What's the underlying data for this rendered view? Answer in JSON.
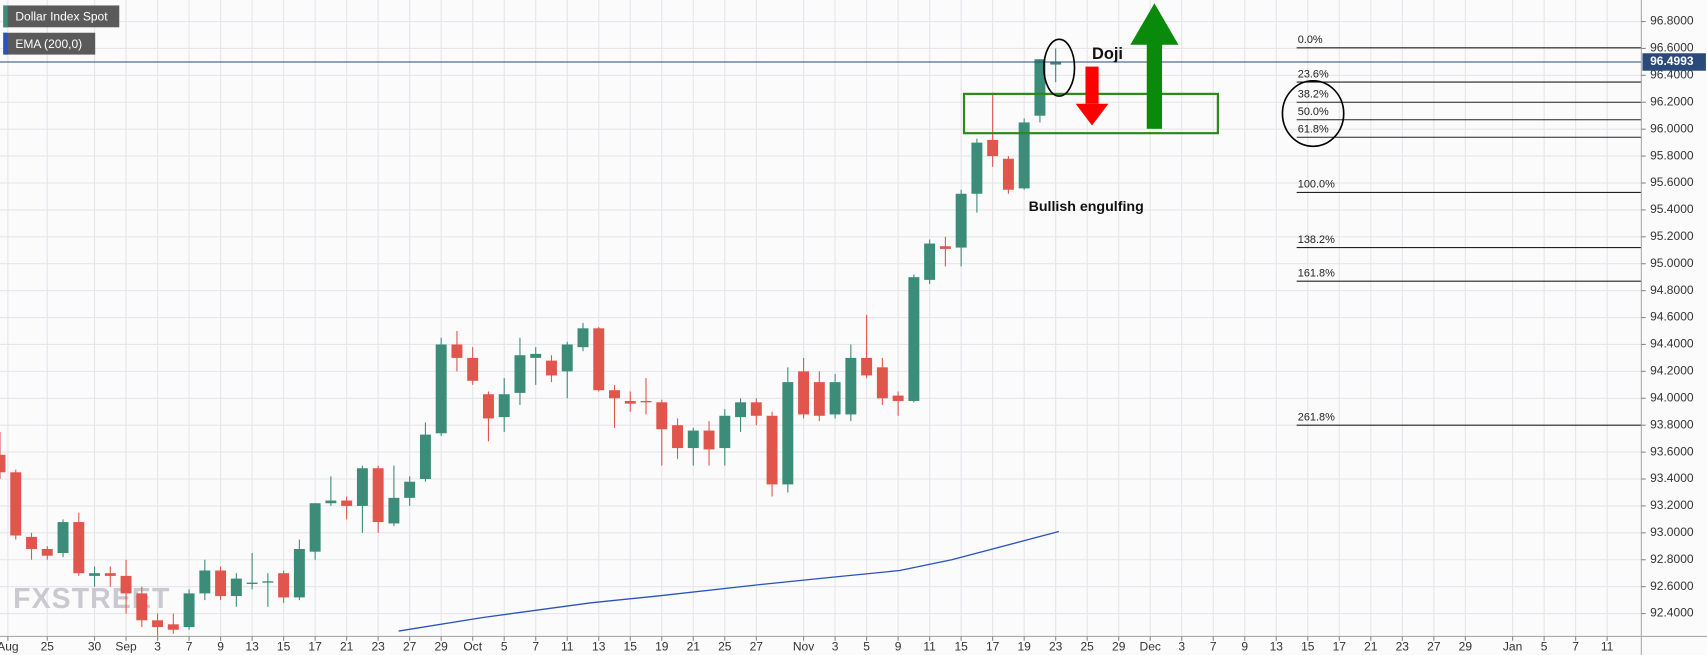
{
  "chart_data": {
    "type": "candlestick",
    "series": [
      {
        "name": "Dollar Index Spot",
        "up_color": "#3b8c78",
        "down_color": "#e0554c",
        "x": [
          0,
          1,
          2,
          3,
          4,
          5,
          6,
          7,
          8,
          9,
          10,
          11,
          12,
          13,
          14,
          15,
          16,
          17,
          18,
          19,
          20,
          21,
          22,
          23,
          24,
          25,
          26,
          27,
          28,
          29,
          30,
          31,
          32,
          33,
          34,
          35,
          36,
          37,
          38,
          39,
          40,
          41,
          42,
          43,
          44,
          45,
          46,
          47,
          48,
          49,
          50,
          51,
          52,
          53,
          54,
          55,
          56,
          57,
          58,
          59,
          60,
          61,
          62,
          63,
          64,
          65,
          66,
          67
        ],
        "open": [
          93.58,
          93.45,
          92.97,
          92.88,
          92.85,
          93.08,
          92.68,
          92.7,
          92.68,
          92.55,
          92.35,
          92.32,
          92.3,
          92.55,
          92.72,
          92.53,
          92.62,
          92.63,
          92.7,
          92.52,
          92.86,
          93.22,
          93.24,
          93.2,
          93.48,
          93.07,
          93.26,
          93.4,
          93.74,
          94.4,
          94.3,
          94.03,
          93.86,
          94.04,
          94.3,
          94.28,
          94.2,
          94.38,
          94.52,
          94.06,
          93.98,
          93.98,
          93.97,
          93.8,
          93.63,
          93.76,
          93.63,
          93.86,
          93.97,
          93.87,
          93.36,
          94.2,
          94.12,
          93.88,
          93.88,
          94.3,
          94.23,
          94.02,
          93.98,
          94.88,
          95.13,
          95.12,
          95.52,
          95.92,
          95.78,
          95.56,
          96.1,
          96.48
        ],
        "high": [
          93.75,
          93.47,
          93.0,
          92.9,
          93.1,
          93.15,
          92.75,
          92.75,
          92.8,
          92.6,
          92.4,
          92.4,
          92.58,
          92.8,
          92.75,
          92.7,
          92.85,
          92.7,
          92.72,
          92.95,
          93.22,
          93.42,
          93.27,
          93.5,
          93.5,
          93.5,
          93.42,
          93.82,
          94.45,
          94.5,
          94.38,
          94.05,
          94.15,
          94.45,
          94.38,
          94.32,
          94.42,
          94.56,
          94.53,
          94.1,
          94.05,
          94.15,
          93.99,
          93.85,
          93.78,
          93.83,
          93.92,
          94.0,
          94.0,
          93.9,
          94.23,
          94.3,
          94.2,
          94.18,
          94.4,
          94.62,
          94.3,
          94.05,
          94.92,
          95.18,
          95.2,
          95.55,
          95.93,
          96.26,
          95.8,
          96.08,
          96.52,
          96.6
        ],
        "low": [
          93.4,
          92.95,
          92.8,
          92.8,
          92.82,
          92.68,
          92.6,
          92.6,
          92.4,
          92.3,
          92.2,
          92.25,
          92.28,
          92.5,
          92.5,
          92.45,
          92.58,
          92.45,
          92.48,
          92.5,
          92.8,
          93.2,
          93.1,
          93.0,
          93.0,
          93.05,
          93.2,
          93.38,
          93.72,
          94.2,
          94.1,
          93.68,
          93.75,
          93.95,
          94.1,
          94.12,
          94.0,
          94.35,
          94.05,
          93.78,
          93.9,
          93.88,
          93.5,
          93.55,
          93.5,
          93.5,
          93.5,
          93.75,
          93.8,
          93.27,
          93.3,
          93.85,
          93.83,
          93.85,
          93.83,
          94.15,
          93.95,
          93.87,
          93.97,
          94.85,
          94.98,
          94.98,
          95.38,
          95.72,
          95.52,
          95.55,
          96.05,
          96.35
        ],
        "close": [
          93.45,
          92.98,
          92.88,
          92.83,
          93.08,
          92.7,
          92.7,
          92.68,
          92.55,
          92.35,
          92.3,
          92.28,
          92.55,
          92.72,
          92.53,
          92.66,
          92.63,
          92.64,
          92.52,
          92.88,
          93.22,
          93.24,
          93.2,
          93.48,
          93.08,
          93.26,
          93.38,
          93.73,
          94.4,
          94.3,
          94.13,
          93.85,
          94.03,
          94.32,
          94.33,
          94.17,
          94.4,
          94.52,
          94.06,
          94.0,
          93.96,
          93.97,
          93.77,
          93.63,
          93.76,
          93.62,
          93.87,
          93.97,
          93.87,
          93.36,
          94.12,
          93.88,
          93.87,
          94.12,
          94.3,
          94.17,
          94.0,
          93.98,
          94.9,
          95.15,
          95.11,
          95.52,
          95.9,
          95.8,
          95.55,
          96.05,
          96.52,
          96.5
        ]
      }
    ],
    "ema": {
      "name": "EMA (200,0)",
      "color": "#2a52be",
      "x": [
        25.3,
        30.6,
        37.5,
        41.7,
        48.6,
        52.8,
        57.1,
        60.4,
        67.2
      ],
      "values": [
        92.27,
        92.37,
        92.48,
        92.53,
        92.62,
        92.67,
        92.72,
        92.8,
        93.01
      ]
    },
    "last_price": 96.4993,
    "last_price_color": "#2a4a7a",
    "fib_levels": [
      {
        "label": "0.0%",
        "value": 96.605
      },
      {
        "label": "23.6%",
        "value": 96.35
      },
      {
        "label": "38.2%",
        "value": 96.2
      },
      {
        "label": "50.0%",
        "value": 96.07
      },
      {
        "label": "61.8%",
        "value": 95.94
      },
      {
        "label": "100.0%",
        "value": 95.53
      },
      {
        "label": "138.2%",
        "value": 95.12
      },
      {
        "label": "161.8%",
        "value": 94.87
      },
      {
        "label": "261.8%",
        "value": 93.8
      }
    ],
    "annotations": [
      "Doji",
      "Bullish engulfing"
    ],
    "watermark": "FXSTREET",
    "ylim": [
      92.23,
      96.96
    ],
    "yticks": [
      {
        "value": 92.4,
        "label": "92.4000"
      },
      {
        "value": 92.6,
        "label": "92.6000"
      },
      {
        "value": 92.8,
        "label": "92.8000"
      },
      {
        "value": 93.0,
        "label": "93.0000"
      },
      {
        "value": 93.2,
        "label": "93.2000"
      },
      {
        "value": 93.4,
        "label": "93.4000"
      },
      {
        "value": 93.6,
        "label": "93.6000"
      },
      {
        "value": 93.8,
        "label": "93.8000"
      },
      {
        "value": 94.0,
        "label": "94.0000"
      },
      {
        "value": 94.2,
        "label": "94.2000"
      },
      {
        "value": 94.4,
        "label": "94.4000"
      },
      {
        "value": 94.6,
        "label": "94.6000"
      },
      {
        "value": 94.8,
        "label": "94.8000"
      },
      {
        "value": 95.0,
        "label": "95.0000"
      },
      {
        "value": 95.2,
        "label": "95.2000"
      },
      {
        "value": 95.4,
        "label": "95.4000"
      },
      {
        "value": 95.6,
        "label": "95.6000"
      },
      {
        "value": 95.8,
        "label": "95.8000"
      },
      {
        "value": 96.0,
        "label": "96.0000"
      },
      {
        "value": 96.2,
        "label": "96.2000"
      },
      {
        "value": 96.4,
        "label": "96.4000"
      },
      {
        "value": 96.6,
        "label": "96.6000"
      },
      {
        "value": 96.8,
        "label": "96.8000"
      }
    ],
    "xlim": [
      0,
      104.17
    ],
    "xticks": [
      {
        "value": 0.5,
        "label": "Aug"
      },
      {
        "value": 3,
        "label": "25"
      },
      {
        "value": 6,
        "label": "30"
      },
      {
        "value": 8,
        "label": "Sep"
      },
      {
        "value": 10,
        "label": "3"
      },
      {
        "value": 12,
        "label": "7"
      },
      {
        "value": 14,
        "label": "9"
      },
      {
        "value": 16,
        "label": "13"
      },
      {
        "value": 18,
        "label": "15"
      },
      {
        "value": 20,
        "label": "17"
      },
      {
        "value": 22,
        "label": "21"
      },
      {
        "value": 24,
        "label": "23"
      },
      {
        "value": 26,
        "label": "27"
      },
      {
        "value": 28,
        "label": "29"
      },
      {
        "value": 30,
        "label": "Oct"
      },
      {
        "value": 32,
        "label": "5"
      },
      {
        "value": 34,
        "label": "7"
      },
      {
        "value": 36,
        "label": "11"
      },
      {
        "value": 38,
        "label": "13"
      },
      {
        "value": 40,
        "label": "15"
      },
      {
        "value": 42,
        "label": "19"
      },
      {
        "value": 44,
        "label": "21"
      },
      {
        "value": 46,
        "label": "25"
      },
      {
        "value": 48,
        "label": "27"
      },
      {
        "value": 51,
        "label": "Nov"
      },
      {
        "value": 53,
        "label": "3"
      },
      {
        "value": 55,
        "label": "5"
      },
      {
        "value": 57,
        "label": "9"
      },
      {
        "value": 59,
        "label": "11"
      },
      {
        "value": 61,
        "label": "15"
      },
      {
        "value": 63,
        "label": "17"
      },
      {
        "value": 65,
        "label": "19"
      },
      {
        "value": 67,
        "label": "23"
      },
      {
        "value": 69,
        "label": "25"
      },
      {
        "value": 71,
        "label": "29"
      },
      {
        "value": 73,
        "label": "Dec"
      },
      {
        "value": 75,
        "label": "3"
      },
      {
        "value": 77,
        "label": "7"
      },
      {
        "value": 79,
        "label": "9"
      },
      {
        "value": 81,
        "label": "13"
      },
      {
        "value": 83,
        "label": "15"
      },
      {
        "value": 85,
        "label": "17"
      },
      {
        "value": 87,
        "label": "21"
      },
      {
        "value": 89,
        "label": "23"
      },
      {
        "value": 91,
        "label": "27"
      },
      {
        "value": 93,
        "label": "29"
      },
      {
        "value": 96,
        "label": "Jan"
      },
      {
        "value": 98,
        "label": "5"
      },
      {
        "value": 100,
        "label": "7"
      },
      {
        "value": 102,
        "label": "11"
      }
    ],
    "grid": true
  }
}
